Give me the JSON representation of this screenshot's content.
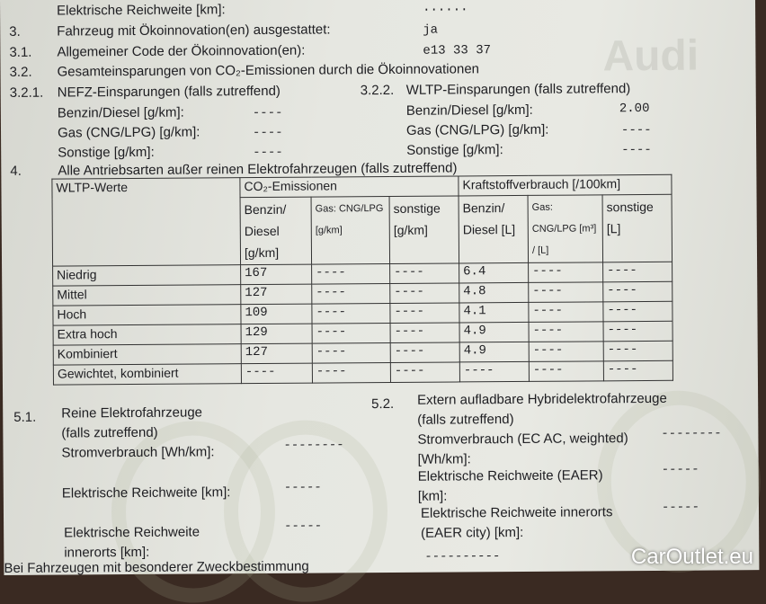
{
  "header": {
    "range_label": "Elektrische Reichweite [km]:",
    "range_value": "......"
  },
  "s3": {
    "num": "3.",
    "label": "Fahrzeug mit Ökoinnovation(en) ausgestattet:",
    "value": "ja"
  },
  "s31": {
    "num": "3.1.",
    "label": "Allgemeiner Code der Ökoinnovation(en):",
    "value": "e13 33 37"
  },
  "s32": {
    "num": "3.2.",
    "label": "Gesamteinsparungen von CO₂-Emissionen durch die Ökoinnovationen"
  },
  "s321": {
    "num": "3.2.1.",
    "label": "NEFZ-Einsparungen (falls zutreffend)",
    "rows": [
      {
        "label": "Benzin/Diesel [g/km]:",
        "value": "----"
      },
      {
        "label": "Gas (CNG/LPG) [g/km]:",
        "value": "----"
      },
      {
        "label": "Sonstige [g/km]:",
        "value": "----"
      }
    ]
  },
  "s322": {
    "num": "3.2.2.",
    "label": "WLTP-Einsparungen (falls zutreffend)",
    "rows": [
      {
        "label": "Benzin/Diesel [g/km]:",
        "value": "2.00"
      },
      {
        "label": "Gas (CNG/LPG) [g/km]:",
        "value": "----"
      },
      {
        "label": "Sonstige [g/km]:",
        "value": "----"
      }
    ]
  },
  "s4": {
    "num": "4.",
    "label": "Alle Antriebsarten außer reinen Elektrofahrzeugen (falls zutreffend)"
  },
  "table": {
    "corner": "WLTP-Werte",
    "group1": "CO₂-Emissionen",
    "group2": "Kraftstoffverbrauch [/100km]",
    "cols": [
      "Benzin/ Diesel [g/km]",
      "Gas: CNG/LPG [g/km]",
      "sonstige [g/km]",
      "Benzin/ Diesel [L]",
      "Gas: CNG/LPG [m³] / [L]",
      "sonstige [L]"
    ],
    "rows": [
      {
        "label": "Niedrig",
        "cells": [
          "167",
          "----",
          "----",
          "6.4",
          "----",
          "----"
        ]
      },
      {
        "label": "Mittel",
        "cells": [
          "127",
          "----",
          "----",
          "4.8",
          "----",
          "----"
        ]
      },
      {
        "label": "Hoch",
        "cells": [
          "109",
          "----",
          "----",
          "4.1",
          "----",
          "----"
        ]
      },
      {
        "label": "Extra hoch",
        "cells": [
          "129",
          "----",
          "----",
          "4.9",
          "----",
          "----"
        ]
      },
      {
        "label": "Kombiniert",
        "cells": [
          "127",
          "----",
          "----",
          "4.9",
          "----",
          "----"
        ]
      },
      {
        "label": "Gewichtet, kombiniert",
        "cells": [
          "----",
          "----",
          "----",
          "----",
          "----",
          "----"
        ]
      }
    ]
  },
  "s51": {
    "num": "5.1.",
    "title1": "Reine Elektrofahrzeuge",
    "title2": "(falls zutreffend)",
    "consumption": "Stromverbrauch [Wh/km]:",
    "consumption_value": "--------",
    "range": "Elektrische Reichweite [km]:",
    "range_value": "-----",
    "city1": "Elektrische Reichweite",
    "city2": "innerorts [km]:",
    "city_value": "-----"
  },
  "s52": {
    "num": "5.2.",
    "title1": "Extern aufladbare Hybridelektrofahrzeuge",
    "title2": "(falls zutreffend)",
    "consumption1": "Stromverbrauch (EC AC, weighted)",
    "consumption2": "[Wh/km]:",
    "consumption_value": "--------",
    "range1": "Elektrische Reichweite (EAER)",
    "range2": "[km]:",
    "range_value": "-----",
    "city1": "Elektrische Reichweite innerorts",
    "city2": "(EAER city) [km]:",
    "city_value": "-----"
  },
  "footer": {
    "cut_text": "Bei Fahrzeugen mit besonderer Zweckbestimmung",
    "cut_value": "----------"
  },
  "logo": "CarOutlet.eu",
  "watermark": "Audi"
}
